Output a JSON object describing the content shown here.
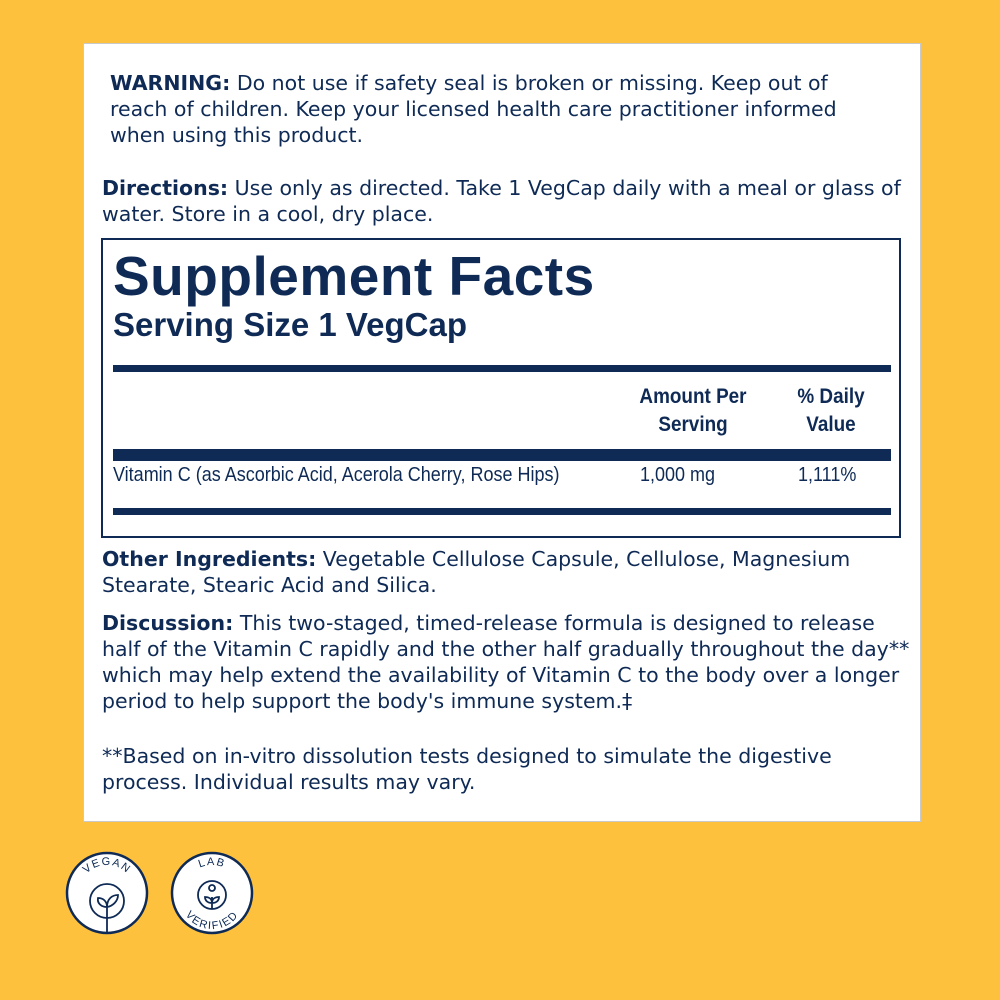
{
  "warning": {
    "label": "WARNING:",
    "text": " Do not use if safety seal is broken or missing. Keep out of reach of children. Keep your licensed health care practitioner informed when using this product."
  },
  "directions": {
    "label": "Directions:",
    "text": " Use only as directed. Take 1 VegCap daily with a meal or glass of water. Store in a cool, dry place."
  },
  "facts": {
    "title": "Supplement Facts",
    "serving": "Serving Size 1 VegCap",
    "col_amount": "Amount Per Serving",
    "col_dv": "% Daily Value",
    "rows": [
      {
        "name": "Vitamin C (as Ascorbic Acid, Acerola Cherry, Rose Hips)",
        "amount": "1,000 mg",
        "dv": "1,111%"
      }
    ]
  },
  "other": {
    "label": "Other Ingredients:",
    "text": " Vegetable Cellulose Capsule, Cellulose, Magnesium Stearate, Stearic Acid and Silica."
  },
  "discussion": {
    "label": "Discussion:",
    "text": " This two-staged, timed-release formula is designed to release half of the Vitamin C rapidly and the other half gradually throughout the day** which may help extend the availability of Vitamin C to the body over a longer period to help support the body's immune system.‡"
  },
  "footnote": "**Based on in-vitro dissolution tests designed to simulate the digestive process. Individual results may vary.",
  "badges": [
    {
      "text": "VEGAN",
      "icon": "sprout-icon"
    },
    {
      "text": "LAB VERIFIED",
      "icon": "person-sprout-icon"
    }
  ],
  "colors": {
    "background": "#FEC13E",
    "navy": "#0E2A55"
  }
}
